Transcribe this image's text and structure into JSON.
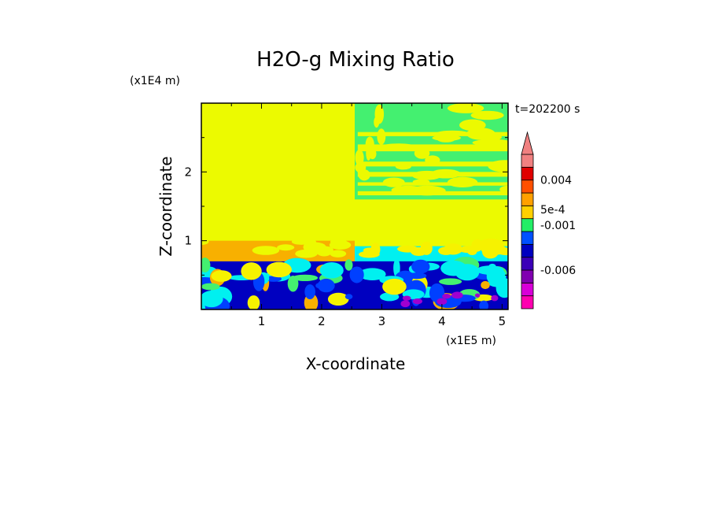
{
  "chart_data": {
    "type": "heatmap",
    "title": "H2O-g Mixing Ratio",
    "xlabel": "X-coordinate",
    "ylabel": "Z-coordinate",
    "x_scale_label": "(x1E5 m)",
    "y_scale_label": "(x1E4 m)",
    "time_label": "t=202200 s",
    "xlim": [
      0,
      5.1
    ],
    "ylim": [
      0,
      3.0
    ],
    "x_ticks": [
      "1",
      "2",
      "3",
      "4",
      "5"
    ],
    "y_ticks": [
      "1",
      "2"
    ],
    "colorbar_labels": [
      "0.004",
      "5e-4",
      "-0.001",
      "-0.006"
    ],
    "colorbar_levels": [
      {
        "color": "#ff00b0"
      },
      {
        "color": "#d800d8"
      },
      {
        "color": "#8000b0"
      },
      {
        "color": "#3c00b8"
      },
      {
        "color": "#0000c0"
      },
      {
        "color": "#0050ff"
      },
      {
        "color": "#22ee66"
      },
      {
        "color": "#ffd000"
      },
      {
        "color": "#ffa000"
      },
      {
        "color": "#ff5000"
      },
      {
        "color": "#e00000"
      },
      {
        "color": "#f08080"
      }
    ],
    "field_colors": {
      "yellow": "#ecfa00",
      "light_yellow": "#f6f200",
      "orange": "#f8b000",
      "green": "#44f070",
      "cyan": "#00f0f0",
      "blue": "#0000c0",
      "mid_blue": "#0040ff",
      "magenta": "#a000d0"
    }
  }
}
